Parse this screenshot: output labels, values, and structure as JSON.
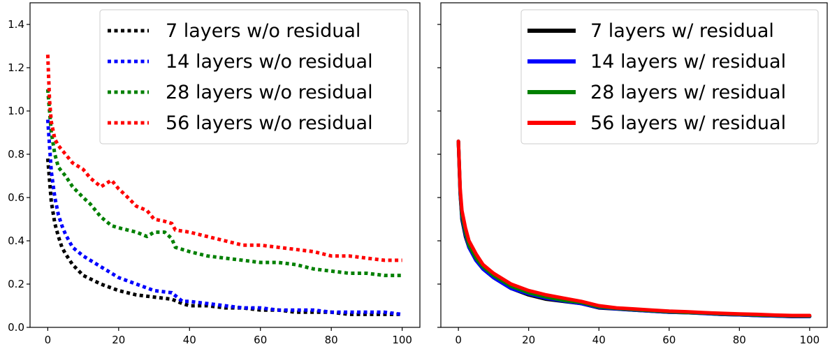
{
  "chart_data": [
    {
      "type": "line",
      "xlim": [
        -5,
        105
      ],
      "ylim": [
        0,
        1.5
      ],
      "xticks": [
        0,
        20,
        40,
        60,
        80,
        100
      ],
      "yticks": [
        0.0,
        0.2,
        0.4,
        0.6,
        0.8,
        1.0,
        1.2,
        1.4
      ],
      "xtick_labels": [
        "0",
        "20",
        "40",
        "60",
        "80",
        "100"
      ],
      "ytick_labels": [
        "0.0",
        "0.2",
        "0.4",
        "0.6",
        "0.8",
        "1.0",
        "1.2",
        "1.4"
      ],
      "grid": false,
      "legend_position": "top-right",
      "line_style": "dotted",
      "series": [
        {
          "name": "7 layers w/o residual",
          "color": "#000000",
          "x": [
            0,
            1,
            2,
            3,
            4,
            5,
            7,
            10,
            15,
            20,
            25,
            30,
            35,
            38,
            40,
            45,
            50,
            55,
            60,
            65,
            70,
            75,
            80,
            85,
            90,
            95,
            100
          ],
          "y": [
            0.78,
            0.58,
            0.48,
            0.42,
            0.37,
            0.34,
            0.29,
            0.24,
            0.2,
            0.17,
            0.15,
            0.14,
            0.13,
            0.11,
            0.1,
            0.1,
            0.09,
            0.09,
            0.08,
            0.08,
            0.07,
            0.07,
            0.07,
            0.06,
            0.06,
            0.06,
            0.06
          ]
        },
        {
          "name": "14 layers w/o residual",
          "color": "#0000ff",
          "x": [
            0,
            1,
            2,
            3,
            4,
            5,
            7,
            10,
            15,
            20,
            25,
            30,
            35,
            38,
            40,
            45,
            50,
            55,
            60,
            65,
            70,
            75,
            80,
            85,
            90,
            95,
            100
          ],
          "y": [
            0.96,
            0.72,
            0.6,
            0.52,
            0.47,
            0.43,
            0.37,
            0.33,
            0.28,
            0.23,
            0.2,
            0.17,
            0.16,
            0.12,
            0.12,
            0.11,
            0.1,
            0.09,
            0.09,
            0.08,
            0.08,
            0.08,
            0.07,
            0.07,
            0.07,
            0.07,
            0.06
          ]
        },
        {
          "name": "28 layers w/o residual",
          "color": "#008000",
          "x": [
            0,
            1,
            2,
            3,
            5,
            7,
            10,
            12,
            15,
            18,
            20,
            25,
            28,
            30,
            33,
            35,
            36,
            40,
            45,
            50,
            55,
            60,
            65,
            70,
            75,
            80,
            85,
            90,
            95,
            100
          ],
          "y": [
            1.1,
            0.9,
            0.8,
            0.74,
            0.7,
            0.65,
            0.6,
            0.57,
            0.51,
            0.47,
            0.46,
            0.44,
            0.42,
            0.44,
            0.44,
            0.41,
            0.37,
            0.35,
            0.33,
            0.32,
            0.31,
            0.3,
            0.3,
            0.29,
            0.27,
            0.26,
            0.25,
            0.25,
            0.24,
            0.24
          ]
        },
        {
          "name": "56 layers w/o residual",
          "color": "#ff0000",
          "x": [
            0,
            0.5,
            1,
            2,
            3,
            5,
            7,
            10,
            12,
            15,
            18,
            20,
            22,
            25,
            28,
            30,
            33,
            35,
            36,
            40,
            45,
            50,
            55,
            60,
            65,
            70,
            75,
            80,
            85,
            90,
            95,
            100
          ],
          "y": [
            1.26,
            1.05,
            0.95,
            0.87,
            0.84,
            0.8,
            0.76,
            0.73,
            0.69,
            0.65,
            0.68,
            0.64,
            0.61,
            0.56,
            0.54,
            0.5,
            0.49,
            0.48,
            0.45,
            0.44,
            0.42,
            0.4,
            0.38,
            0.38,
            0.37,
            0.36,
            0.35,
            0.33,
            0.33,
            0.32,
            0.31,
            0.31
          ]
        }
      ]
    },
    {
      "type": "line",
      "xlim": [
        -5,
        105
      ],
      "ylim": [
        0,
        1.5
      ],
      "xticks": [
        0,
        20,
        40,
        60,
        80,
        100
      ],
      "yticks": [
        0.0,
        0.2,
        0.4,
        0.6,
        0.8,
        1.0,
        1.2,
        1.4
      ],
      "xtick_labels": [
        "0",
        "20",
        "40",
        "60",
        "80",
        "100"
      ],
      "ytick_labels": [],
      "grid": false,
      "legend_position": "top-right",
      "line_style": "solid",
      "series": [
        {
          "name": "7 layers w/ residual",
          "color": "#000000",
          "x": [
            0,
            0.5,
            1,
            2,
            3,
            5,
            7,
            10,
            15,
            20,
            25,
            30,
            35,
            40,
            45,
            50,
            55,
            60,
            65,
            70,
            75,
            80,
            85,
            90,
            95,
            100
          ],
          "y": [
            0.86,
            0.62,
            0.5,
            0.42,
            0.37,
            0.31,
            0.27,
            0.23,
            0.18,
            0.15,
            0.13,
            0.12,
            0.11,
            0.09,
            0.085,
            0.08,
            0.075,
            0.07,
            0.068,
            0.065,
            0.06,
            0.058,
            0.055,
            0.053,
            0.05,
            0.05
          ]
        },
        {
          "name": "14 layers w/ residual",
          "color": "#0000ff",
          "x": [
            0,
            0.5,
            1,
            2,
            3,
            5,
            7,
            10,
            15,
            20,
            25,
            30,
            35,
            40,
            45,
            50,
            55,
            60,
            65,
            70,
            75,
            80,
            85,
            90,
            95,
            100
          ],
          "y": [
            0.86,
            0.62,
            0.51,
            0.43,
            0.37,
            0.31,
            0.27,
            0.23,
            0.18,
            0.155,
            0.135,
            0.122,
            0.11,
            0.092,
            0.086,
            0.08,
            0.075,
            0.07,
            0.068,
            0.064,
            0.06,
            0.058,
            0.055,
            0.053,
            0.051,
            0.05
          ]
        },
        {
          "name": "28 layers w/ residual",
          "color": "#008000",
          "x": [
            0,
            0.5,
            1,
            2,
            3,
            5,
            7,
            10,
            15,
            20,
            25,
            30,
            35,
            40,
            45,
            50,
            55,
            60,
            65,
            70,
            75,
            80,
            85,
            90,
            95,
            100
          ],
          "y": [
            0.86,
            0.63,
            0.52,
            0.44,
            0.38,
            0.32,
            0.28,
            0.24,
            0.19,
            0.16,
            0.14,
            0.125,
            0.115,
            0.095,
            0.088,
            0.082,
            0.077,
            0.072,
            0.069,
            0.066,
            0.062,
            0.06,
            0.057,
            0.055,
            0.053,
            0.052
          ]
        },
        {
          "name": "56 layers w/ residual",
          "color": "#ff0000",
          "x": [
            0,
            0.5,
            1,
            2,
            3,
            5,
            7,
            10,
            15,
            20,
            25,
            30,
            35,
            40,
            45,
            50,
            55,
            60,
            65,
            70,
            75,
            80,
            85,
            90,
            95,
            100
          ],
          "y": [
            0.86,
            0.64,
            0.54,
            0.46,
            0.4,
            0.34,
            0.29,
            0.25,
            0.2,
            0.17,
            0.15,
            0.135,
            0.12,
            0.1,
            0.09,
            0.085,
            0.08,
            0.075,
            0.072,
            0.068,
            0.065,
            0.062,
            0.06,
            0.057,
            0.055,
            0.055
          ]
        }
      ]
    }
  ]
}
